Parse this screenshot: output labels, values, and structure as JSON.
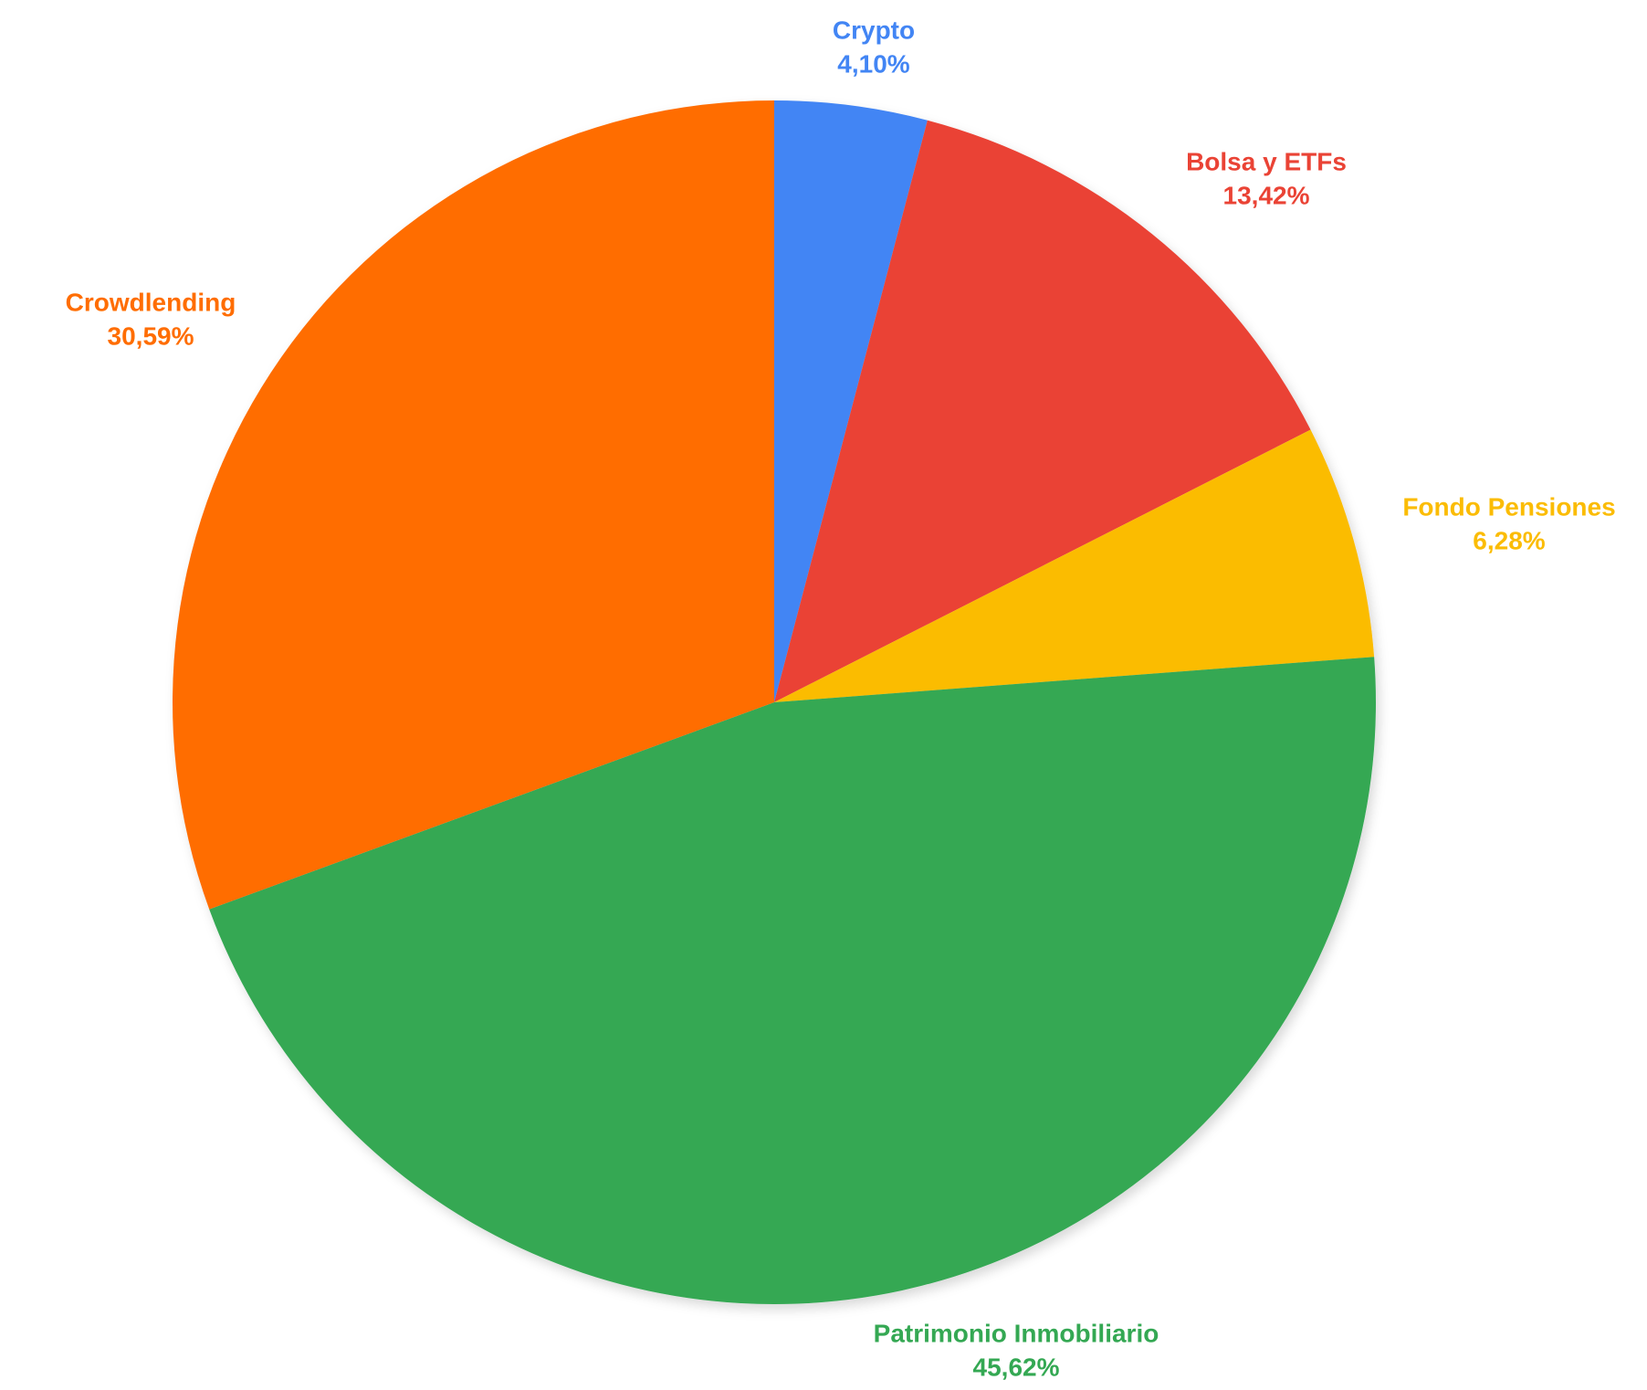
{
  "chart_data": {
    "type": "pie",
    "categories": [
      "Crypto",
      "Bolsa y ETFs",
      "Fondo Pensiones",
      "Patrimonio Inmobiliario",
      "Crowdlending"
    ],
    "values": [
      4.1,
      13.42,
      6.28,
      45.62,
      30.59
    ],
    "value_labels": [
      "4,10%",
      "13,42%",
      "6,28%",
      "45,62%",
      "30,59%"
    ],
    "colors": [
      "#4285f4",
      "#ea4335",
      "#fbbc04",
      "#34a853",
      "#ff6d01"
    ]
  }
}
